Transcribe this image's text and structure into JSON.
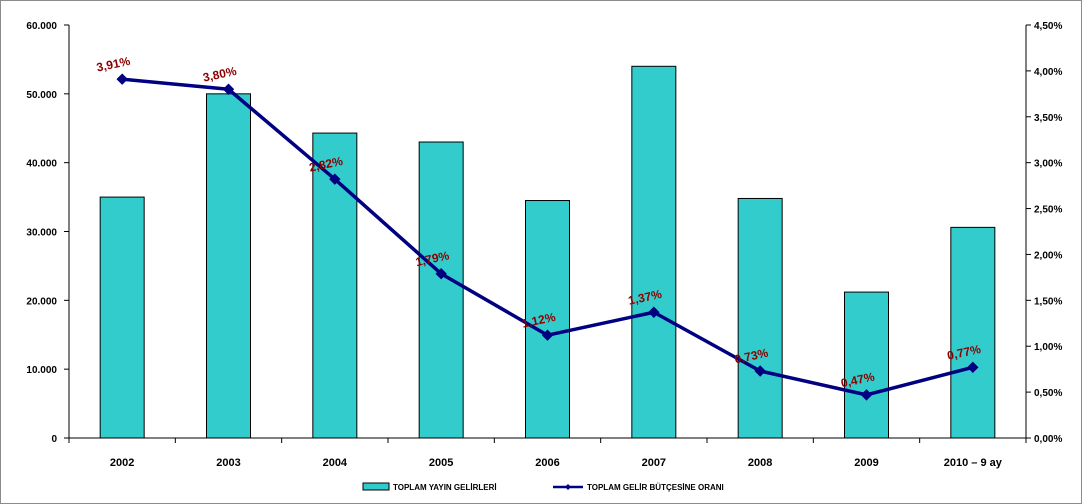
{
  "chart_data": {
    "type": "bar+line",
    "categories": [
      "2002",
      "2003",
      "2004",
      "2005",
      "2006",
      "2007",
      "2008",
      "2009",
      "2010 – 9 ay"
    ],
    "series": [
      {
        "name": "TOPLAM YAYIN GELİRLERİ",
        "type": "bar",
        "axis": "left",
        "values": [
          35000,
          50000,
          44300,
          43000,
          34500,
          54000,
          34800,
          21200,
          30600
        ]
      },
      {
        "name": "TOPLAM GELİR BÜTÇESİNE ORANI",
        "type": "line",
        "axis": "right",
        "values": [
          3.91,
          3.8,
          2.82,
          1.79,
          1.12,
          1.37,
          0.73,
          0.47,
          0.77
        ],
        "labels": [
          "3,91%",
          "3,80%",
          "2,82%",
          "1,79%",
          "1,12%",
          "1,37%",
          "0,73%",
          "0,47%",
          "0,77%"
        ]
      }
    ],
    "y_left": {
      "ylim": [
        0,
        60000
      ],
      "ticks": [
        0,
        10000,
        20000,
        30000,
        40000,
        50000,
        60000
      ],
      "tick_labels": [
        "0",
        "10.000",
        "20.000",
        "30.000",
        "40.000",
        "50.000",
        "60.000"
      ]
    },
    "y_right": {
      "ylim": [
        0,
        4.5
      ],
      "ticks": [
        0,
        0.5,
        1.0,
        1.5,
        2.0,
        2.5,
        3.0,
        3.5,
        4.0,
        4.5
      ],
      "tick_labels": [
        "0,00%",
        "0,50%",
        "1,00%",
        "1,50%",
        "2,00%",
        "2,50%",
        "3,00%",
        "3,50%",
        "4,00%",
        "4,50%"
      ]
    },
    "grid": false,
    "legend_position": "bottom",
    "colors": {
      "bar": "#33cccc",
      "bar_border": "#000000",
      "line": "#000080",
      "data_label": "#8b0000"
    }
  }
}
